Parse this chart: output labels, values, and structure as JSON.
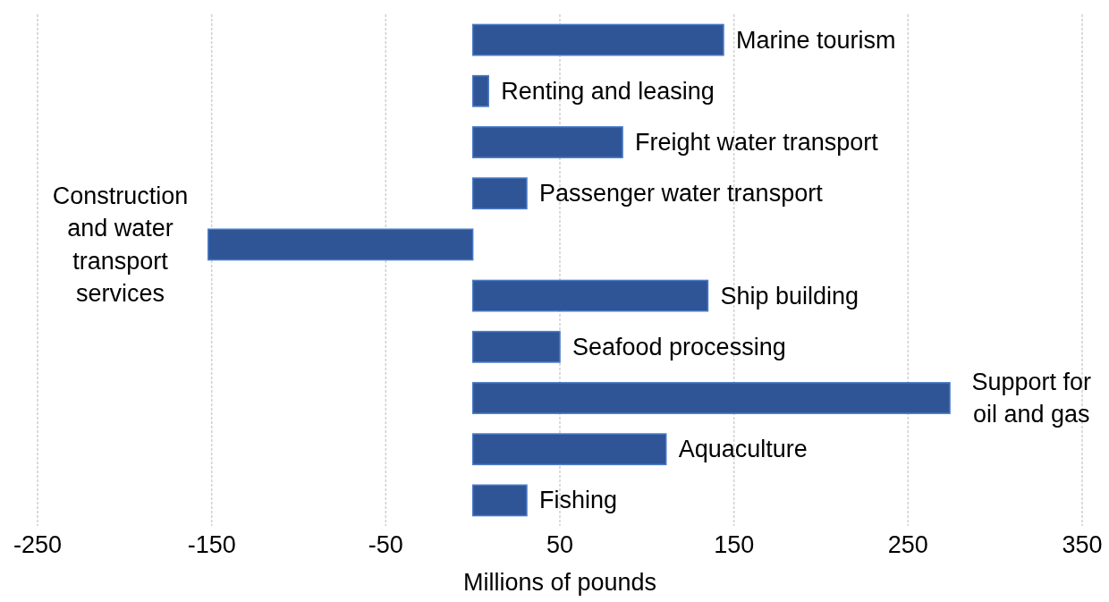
{
  "chart_data": {
    "type": "bar",
    "orientation": "horizontal",
    "xlabel": "Millions of pounds",
    "categories": [
      "Marine tourism",
      "Renting and leasing",
      "Freight water transport",
      "Passenger water transport",
      "Construction and water transport services",
      "Ship building",
      "Seafood processing",
      "Support for oil and gas",
      "Aquaculture",
      "Fishing"
    ],
    "values": [
      144,
      9,
      86,
      31,
      -152,
      135,
      50,
      274,
      111,
      31
    ],
    "color": "#2f5597",
    "xlim": [
      -250,
      350
    ],
    "xticks": [
      -250,
      -150,
      -50,
      50,
      150,
      250,
      350
    ],
    "grid": "x",
    "tick_labels": "x"
  }
}
